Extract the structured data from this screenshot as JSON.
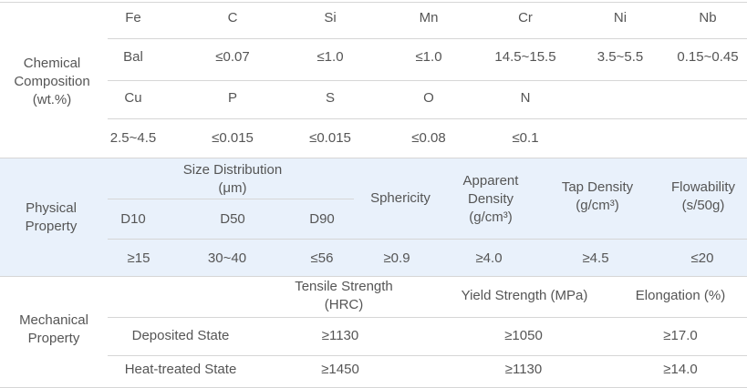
{
  "chemical": {
    "label": "Chemical Composition (wt.%)",
    "rows": [
      [
        "Fe",
        "C",
        "Si",
        "Mn",
        "Cr",
        "Ni",
        "Nb"
      ],
      [
        "Bal",
        "≤0.07",
        "≤1.0",
        "≤1.0",
        "14.5~15.5",
        "3.5~5.5",
        "0.15~0.45"
      ],
      [
        "Cu",
        "P",
        "S",
        "O",
        "N"
      ],
      [
        "2.5~4.5",
        "≤0.015",
        "≤0.015",
        "≤0.08",
        "≤0.1"
      ]
    ]
  },
  "physical": {
    "label": "Physical Property",
    "group_header": "Size Distribution (μm)",
    "headers": [
      "D10",
      "D50",
      "D90",
      "Sphericity",
      "Apparent Density (g/cm³)",
      "Tap Density (g/cm³)",
      "Flowability (s/50g)"
    ],
    "values": [
      "≥15",
      "30~40",
      "≤56",
      "≥0.9",
      "≥4.0",
      "≥4.5",
      "≤20"
    ]
  },
  "mechanical": {
    "label": "Mechanical Property",
    "headers": [
      "Tensile Strength (HRC)",
      "Yield Strength (MPa)",
      "Elongation (%)"
    ],
    "rows": [
      [
        "Deposited State",
        "≥1130",
        "≥1050",
        "≥17.0"
      ],
      [
        "Heat-treated State",
        "≥1450",
        "≥1130",
        "≥14.0"
      ]
    ]
  }
}
